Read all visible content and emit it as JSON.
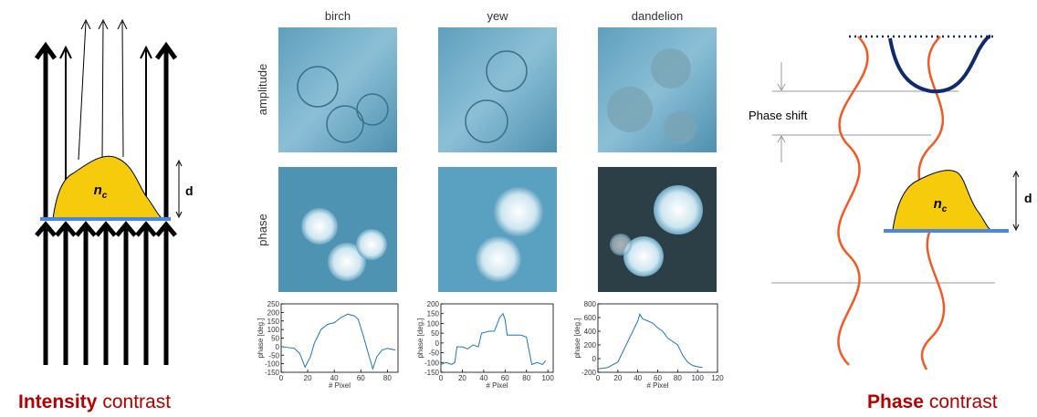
{
  "column_labels": [
    "birch",
    "yew",
    "dandelion"
  ],
  "row_labels": [
    "amplitude",
    "phase"
  ],
  "left_diagram": {
    "material": {
      "symbol": "n",
      "subscript": "c"
    },
    "thickness": "d",
    "caption": {
      "bold": "Intensity",
      "rest": "contrast"
    }
  },
  "right_diagram": {
    "material": {
      "symbol": "n",
      "subscript": "c"
    },
    "thickness": "d",
    "shift_label": "Phase shift",
    "caption": {
      "bold": "Phase",
      "rest": "contrast"
    }
  },
  "chart_data": [
    {
      "type": "line",
      "xlabel": "# Pixel",
      "ylabel": "phase [deg.]",
      "color": "#1f77b4",
      "x": [
        0,
        5,
        10,
        14,
        18,
        22,
        25,
        30,
        35,
        40,
        45,
        50,
        55,
        58,
        62,
        66,
        69,
        72,
        76,
        80,
        86
      ],
      "values": [
        0,
        -5,
        -10,
        -40,
        -120,
        -60,
        20,
        100,
        130,
        140,
        170,
        190,
        180,
        160,
        60,
        -50,
        -130,
        -60,
        -20,
        -10,
        -20
      ],
      "xlim": [
        0,
        88
      ],
      "xticks": [
        0,
        20,
        40,
        60,
        80
      ],
      "ylim": [
        -150,
        250
      ],
      "yticks": [
        -150,
        -100,
        -50,
        0,
        50,
        100,
        150,
        200,
        250
      ]
    },
    {
      "type": "line",
      "xlabel": "# Pixel",
      "ylabel": "phase [deg.]",
      "color": "#1f77b4",
      "x": [
        0,
        5,
        10,
        13,
        15,
        20,
        25,
        30,
        35,
        38,
        45,
        50,
        55,
        58,
        60,
        62,
        68,
        75,
        80,
        85,
        90,
        95,
        98
      ],
      "values": [
        -110,
        -100,
        -110,
        -100,
        -20,
        -20,
        -30,
        -10,
        -20,
        50,
        60,
        60,
        130,
        150,
        120,
        40,
        40,
        40,
        30,
        -110,
        -100,
        -110,
        -90
      ],
      "xlim": [
        0,
        105
      ],
      "xticks": [
        0,
        20,
        40,
        60,
        80,
        100
      ],
      "ylim": [
        -150,
        200
      ],
      "yticks": [
        -150,
        -100,
        -50,
        0,
        50,
        100,
        150,
        200
      ]
    },
    {
      "type": "line",
      "xlabel": "# Pixel",
      "ylabel": "phase [deg.]",
      "color": "#1f77b4",
      "x": [
        0,
        10,
        20,
        25,
        30,
        35,
        40,
        42,
        45,
        50,
        55,
        60,
        65,
        70,
        75,
        80,
        85,
        90,
        95,
        100,
        105
      ],
      "values": [
        -150,
        -130,
        -50,
        100,
        250,
        400,
        550,
        650,
        580,
        550,
        520,
        450,
        400,
        300,
        250,
        200,
        50,
        -50,
        -100,
        -120,
        -130
      ],
      "xlim": [
        0,
        120
      ],
      "xticks": [
        0,
        20,
        40,
        60,
        80,
        100,
        120
      ],
      "ylim": [
        -200,
        800
      ],
      "yticks": [
        -200,
        0,
        200,
        400,
        600,
        800
      ]
    }
  ]
}
